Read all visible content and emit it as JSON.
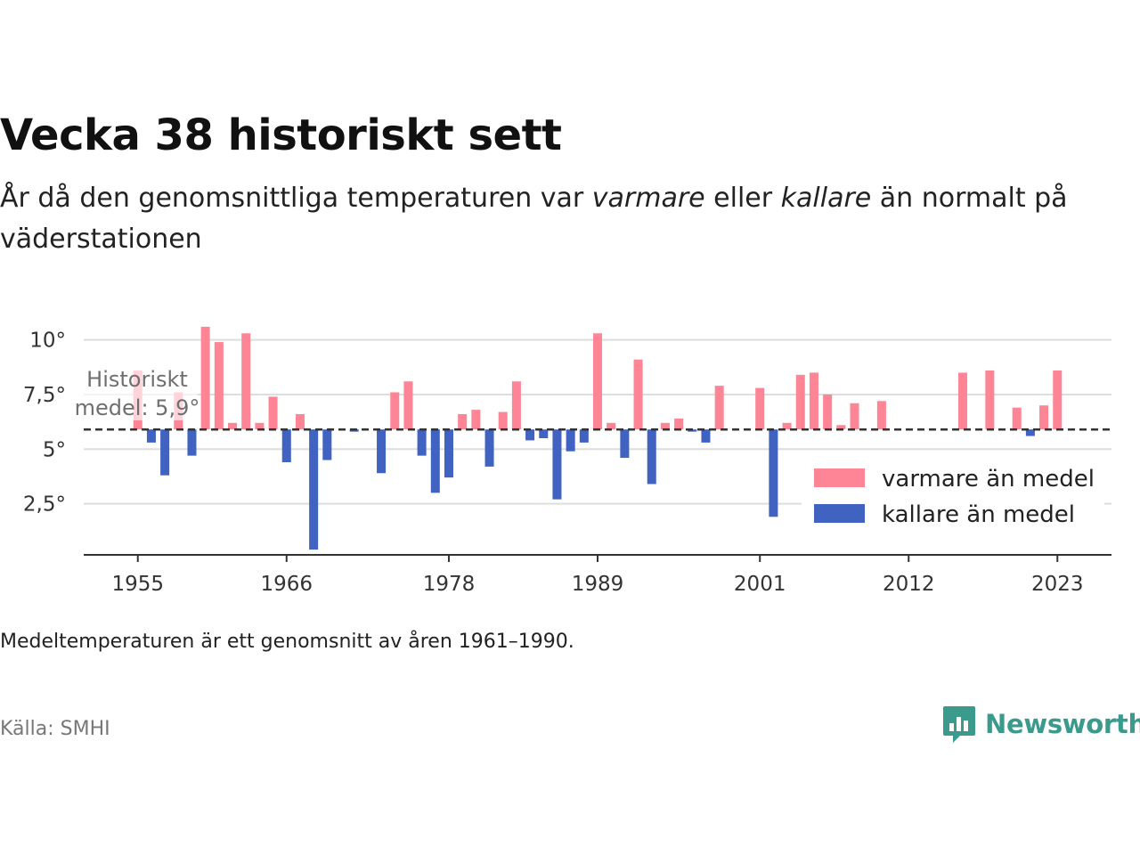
{
  "header": {
    "title": "Vecka 38 historiskt sett",
    "subtitle_parts": [
      "År då den genomsnittliga temperaturen var ",
      "varmare",
      " eller ",
      "kallare",
      " än normalt på väderstationen"
    ]
  },
  "footer": {
    "note": "Medeltemperaturen är ett genomsnitt av åren 1961–1990.",
    "source": "Källa: SMHI",
    "brand": "Newsworthy"
  },
  "colors": {
    "warm": "#fd8595",
    "cold": "#4063c1",
    "mean_line": "#333333",
    "grid": "#dddddd",
    "brand": "#3a9a8c"
  },
  "chart_data": {
    "type": "bar",
    "baseline": 5.9,
    "baseline_label": [
      "Historiskt",
      "medel: 5,9°"
    ],
    "ylim": [
      0.2,
      10.8
    ],
    "yticks": [
      {
        "value": 2.5,
        "label": "2,5°"
      },
      {
        "value": 5,
        "label": "5°"
      },
      {
        "value": 7.5,
        "label": "7,5°"
      },
      {
        "value": 10,
        "label": "10°"
      }
    ],
    "xlim": [
      1951,
      2027
    ],
    "xticks": [
      {
        "value": 1955,
        "label": "1955"
      },
      {
        "value": 1966,
        "label": "1966"
      },
      {
        "value": 1978,
        "label": "1978"
      },
      {
        "value": 1989,
        "label": "1989"
      },
      {
        "value": 2001,
        "label": "2001"
      },
      {
        "value": 2012,
        "label": "2012"
      },
      {
        "value": 2023,
        "label": "2023"
      }
    ],
    "legend": {
      "placement": "bottom-right",
      "entries": [
        {
          "name": "varmare än medel",
          "color": "#fd8595"
        },
        {
          "name": "kallare än medel",
          "color": "#4063c1"
        }
      ]
    },
    "series": [
      {
        "year": 1955,
        "value": 8.6
      },
      {
        "year": 1956,
        "value": 5.3
      },
      {
        "year": 1957,
        "value": 3.8
      },
      {
        "year": 1958,
        "value": 7.6
      },
      {
        "year": 1959,
        "value": 4.7
      },
      {
        "year": 1960,
        "value": 10.6
      },
      {
        "year": 1961,
        "value": 9.9
      },
      {
        "year": 1962,
        "value": 6.2
      },
      {
        "year": 1963,
        "value": 10.3
      },
      {
        "year": 1964,
        "value": 6.2
      },
      {
        "year": 1965,
        "value": 7.4
      },
      {
        "year": 1966,
        "value": 4.4
      },
      {
        "year": 1967,
        "value": 6.6
      },
      {
        "year": 1968,
        "value": 0.4
      },
      {
        "year": 1969,
        "value": 4.5
      },
      {
        "year": 1971,
        "value": 5.8
      },
      {
        "year": 1973,
        "value": 3.9
      },
      {
        "year": 1974,
        "value": 7.6
      },
      {
        "year": 1975,
        "value": 8.1
      },
      {
        "year": 1976,
        "value": 4.7
      },
      {
        "year": 1977,
        "value": 3.0
      },
      {
        "year": 1978,
        "value": 3.7
      },
      {
        "year": 1979,
        "value": 6.6
      },
      {
        "year": 1980,
        "value": 6.8
      },
      {
        "year": 1981,
        "value": 4.2
      },
      {
        "year": 1982,
        "value": 6.7
      },
      {
        "year": 1983,
        "value": 8.1
      },
      {
        "year": 1984,
        "value": 5.4
      },
      {
        "year": 1985,
        "value": 5.5
      },
      {
        "year": 1986,
        "value": 2.7
      },
      {
        "year": 1987,
        "value": 4.9
      },
      {
        "year": 1988,
        "value": 5.3
      },
      {
        "year": 1989,
        "value": 10.3
      },
      {
        "year": 1990,
        "value": 6.2
      },
      {
        "year": 1991,
        "value": 4.6
      },
      {
        "year": 1992,
        "value": 9.1
      },
      {
        "year": 1993,
        "value": 3.4
      },
      {
        "year": 1994,
        "value": 6.2
      },
      {
        "year": 1995,
        "value": 6.4
      },
      {
        "year": 1996,
        "value": 5.8
      },
      {
        "year": 1997,
        "value": 5.3
      },
      {
        "year": 1998,
        "value": 7.9
      },
      {
        "year": 2001,
        "value": 7.8
      },
      {
        "year": 2002,
        "value": 1.9
      },
      {
        "year": 2003,
        "value": 6.2
      },
      {
        "year": 2004,
        "value": 8.4
      },
      {
        "year": 2005,
        "value": 8.5
      },
      {
        "year": 2006,
        "value": 7.5
      },
      {
        "year": 2007,
        "value": 6.1
      },
      {
        "year": 2008,
        "value": 7.1
      },
      {
        "year": 2010,
        "value": 7.2
      },
      {
        "year": 2016,
        "value": 8.5
      },
      {
        "year": 2018,
        "value": 8.6
      },
      {
        "year": 2020,
        "value": 6.9
      },
      {
        "year": 2021,
        "value": 5.6
      },
      {
        "year": 2022,
        "value": 7.0
      },
      {
        "year": 2023,
        "value": 8.6
      }
    ]
  }
}
